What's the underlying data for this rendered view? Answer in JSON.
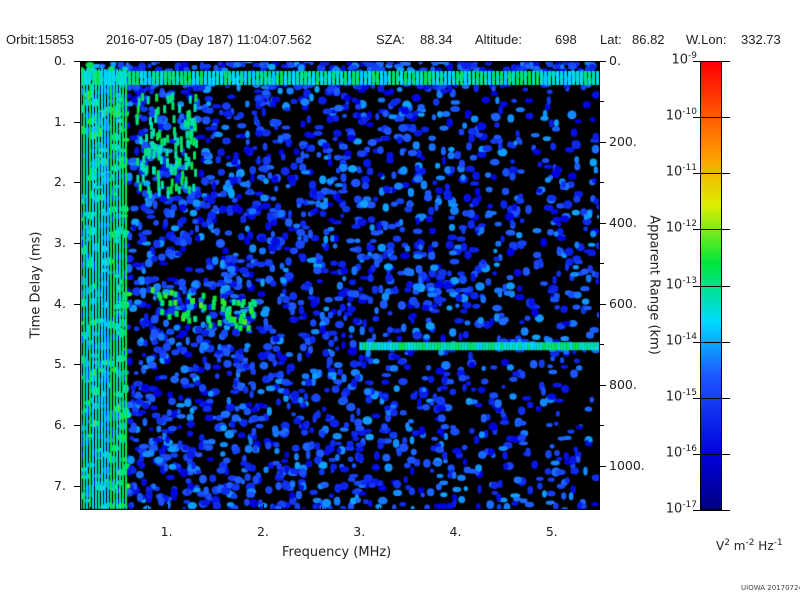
{
  "header": {
    "orbit": "Orbit:15853",
    "datetime": "2016-07-05 (Day 187) 11:04:07.562",
    "sza_label": "SZA:",
    "sza": "88.34",
    "altitude_label": "Altitude:",
    "altitude": "698",
    "lat_label": "Lat:",
    "lat": "86.82",
    "wlon_label": "W.Lon:",
    "wlon": "332.73"
  },
  "chart_data": {
    "type": "heatmap",
    "title": "",
    "xlabel": "Frequency (MHz)",
    "ylabel": "Time Delay (ms)",
    "y2label": "Apparent Range (km)",
    "xlim": [
      0.1,
      5.5
    ],
    "ylim": [
      0,
      7.4
    ],
    "y2lim": [
      0,
      1110
    ],
    "x_ticks": [
      "1.",
      "2.",
      "3.",
      "4.",
      "5."
    ],
    "y_ticks": [
      "0.",
      "1.",
      "2.",
      "3.",
      "4.",
      "5.",
      "6.",
      "7."
    ],
    "y2_ticks": [
      "0.",
      "200.",
      "400.",
      "600.",
      "800.",
      "1000."
    ],
    "colorbar": {
      "label_base": "V",
      "label_exp1": "2",
      "label_m": "m",
      "label_exp2": "-2",
      "label_hz": "Hz",
      "label_exp3": "-1",
      "range_log10": [
        -17,
        -9
      ],
      "ticks": [
        {
          "base": "10",
          "exp": "-9"
        },
        {
          "base": "10",
          "exp": "-10"
        },
        {
          "base": "10",
          "exp": "-11"
        },
        {
          "base": "10",
          "exp": "-12"
        },
        {
          "base": "10",
          "exp": "-13"
        },
        {
          "base": "10",
          "exp": "-14"
        },
        {
          "base": "10",
          "exp": "-15"
        },
        {
          "base": "10",
          "exp": "-16"
        },
        {
          "base": "10",
          "exp": "-17"
        }
      ]
    },
    "features": [
      {
        "name": "surface/ionosphere echo band",
        "freq_MHz": [
          0.1,
          5.5
        ],
        "delay_ms": [
          0.1,
          0.35
        ]
      },
      {
        "name": "trace",
        "freq_MHz": [
          0.8,
          1.9
        ],
        "delay_ms": [
          3.7,
          4.3
        ]
      },
      {
        "name": "horizontal trace",
        "freq_MHz": [
          3.0,
          5.5
        ],
        "delay_ms": [
          4.6,
          4.8
        ]
      }
    ]
  },
  "footer": "UIOWA 20170724"
}
